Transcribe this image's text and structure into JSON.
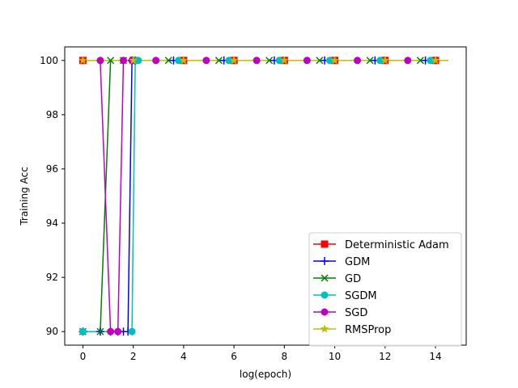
{
  "chart_data": {
    "type": "line",
    "title": "",
    "xlabel": "log(epoch)",
    "ylabel": "Training Acc",
    "xlim": [
      -0.72,
      15.22
    ],
    "ylim": [
      89.5,
      100.5
    ],
    "xticks": [
      0,
      2,
      4,
      6,
      8,
      10,
      12,
      14
    ],
    "yticks": [
      90,
      92,
      94,
      96,
      98,
      100
    ],
    "grid": false,
    "legend_position": "lower-right",
    "series": [
      {
        "name": "Deterministic Adam",
        "color": "#ff0000",
        "marker": "square",
        "x": [
          0.0,
          2.0,
          4.0,
          6.0,
          8.0,
          10.0,
          12.0,
          14.0,
          14.5
        ],
        "y": [
          100,
          100,
          100,
          100,
          100,
          100,
          100,
          100,
          100
        ],
        "marker_x": [
          0.0,
          2.0,
          4.0,
          6.0,
          8.0,
          10.0,
          12.0,
          14.0
        ]
      },
      {
        "name": "GDM",
        "color": "#0000ff",
        "marker": "plus",
        "x": [
          0.0,
          0.69,
          1.1,
          1.39,
          1.61,
          1.79,
          1.95,
          2.08,
          3.0,
          3.6,
          4.0,
          5.0,
          5.6,
          6.0,
          7.0,
          7.6,
          8.0,
          9.0,
          9.6,
          10.0,
          11.0,
          11.6,
          12.0,
          13.0,
          13.6,
          14.0,
          14.5
        ],
        "y": [
          90,
          90,
          90,
          90,
          90,
          90,
          100,
          100,
          100,
          100,
          100,
          100,
          100,
          100,
          100,
          100,
          100,
          100,
          100,
          100,
          100,
          100,
          100,
          100,
          100,
          100,
          100
        ],
        "marker_x": [
          0.0,
          0.69,
          1.1,
          1.39,
          1.61,
          1.79,
          1.95,
          2.08,
          3.6,
          5.6,
          7.6,
          9.6,
          11.6,
          13.6
        ]
      },
      {
        "name": "GD",
        "color": "#008000",
        "marker": "x",
        "x": [
          0.0,
          0.69,
          1.1,
          1.61,
          2.08,
          3.4,
          5.4,
          7.4,
          9.4,
          11.4,
          13.4,
          14.5
        ],
        "y": [
          90,
          90,
          100,
          100,
          100,
          100,
          100,
          100,
          100,
          100,
          100,
          100
        ],
        "marker_x": [
          0.0,
          0.69,
          1.1,
          1.61,
          2.08,
          3.4,
          5.4,
          7.4,
          9.4,
          11.4,
          13.4
        ]
      },
      {
        "name": "SGDM",
        "color": "#00bfbf",
        "marker": "circle",
        "x": [
          0.0,
          0.69,
          1.1,
          1.39,
          1.61,
          1.79,
          1.95,
          2.08,
          2.2,
          3.8,
          5.8,
          7.8,
          9.8,
          11.8,
          13.8,
          14.5
        ],
        "y": [
          90,
          90,
          90,
          90,
          90,
          90,
          90,
          100,
          100,
          100,
          100,
          100,
          100,
          100,
          100,
          100
        ],
        "marker_x": [
          0.0,
          1.95,
          2.08,
          2.2,
          3.8,
          5.8,
          7.8,
          9.8,
          11.8,
          13.8
        ]
      },
      {
        "name": "SGD",
        "color": "#bf00bf",
        "marker": "circle",
        "x": [
          0.0,
          0.69,
          1.1,
          1.39,
          1.61,
          1.95,
          2.08,
          2.9,
          4.9,
          6.9,
          8.9,
          10.9,
          12.9,
          14.5
        ],
        "y": [
          100,
          100,
          90,
          90,
          100,
          100,
          100,
          100,
          100,
          100,
          100,
          100,
          100,
          100
        ],
        "marker_x": [
          0.69,
          1.1,
          1.39,
          1.61,
          1.95,
          2.9,
          4.9,
          6.9,
          8.9,
          10.9,
          12.9
        ]
      },
      {
        "name": "RMSProp",
        "color": "#bfbf00",
        "marker": "star",
        "x": [
          0.0,
          2.0,
          4.0,
          6.0,
          8.0,
          10.0,
          12.0,
          14.0,
          14.5
        ],
        "y": [
          100,
          100,
          100,
          100,
          100,
          100,
          100,
          100,
          100
        ],
        "marker_x": [
          0.0,
          2.0,
          4.0,
          6.0,
          8.0,
          10.0,
          12.0,
          14.0
        ]
      }
    ]
  }
}
